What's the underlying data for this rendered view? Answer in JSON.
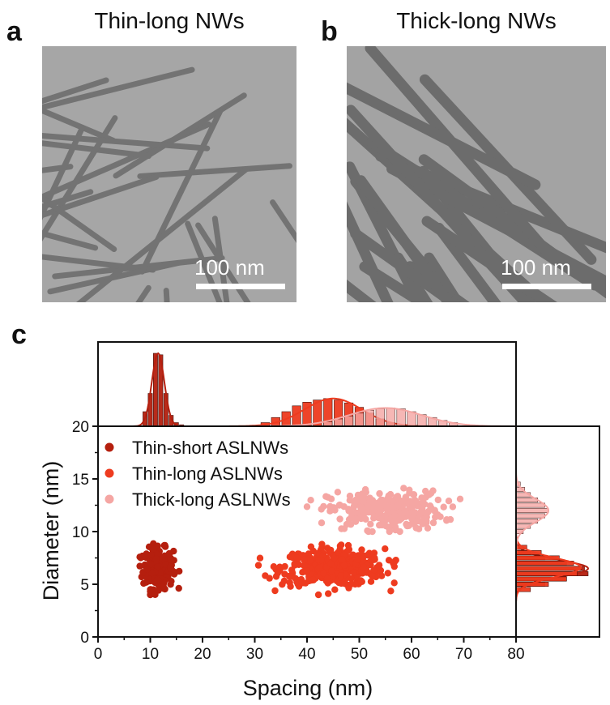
{
  "panels": {
    "a": {
      "letter": "a",
      "title": "Thin-long NWs",
      "scale_label": "100 nm"
    },
    "b": {
      "letter": "b",
      "title": "Thick-long NWs",
      "scale_label": "100 nm"
    },
    "c": {
      "letter": "c"
    }
  },
  "colors": {
    "thin_short": "#b51f0e",
    "thin_long": "#ee3b1f",
    "thick_long": "#f5a6a3"
  },
  "chart_data": {
    "type": "scatter",
    "xlabel": "Spacing (nm)",
    "ylabel": "Diameter (nm)",
    "xlim": [
      0,
      80
    ],
    "ylim": [
      0,
      20
    ],
    "x_ticks": [
      0,
      10,
      20,
      30,
      40,
      50,
      60,
      70,
      80
    ],
    "y_ticks": [
      0,
      5,
      10,
      15,
      20
    ],
    "legend_position": "top-left",
    "series": [
      {
        "name": "Thin-short ASLNWs",
        "color": "#b51f0e",
        "x_center": 11.5,
        "x_range": [
          8,
          16
        ],
        "y_center": 6.5,
        "y_range": [
          4,
          9.2
        ],
        "count": 250
      },
      {
        "name": "Thin-long ASLNWs",
        "color": "#ee3b1f",
        "x_center": 45,
        "x_range": [
          30,
          57
        ],
        "y_center": 6.6,
        "y_range": [
          4,
          8.8
        ],
        "count": 420
      },
      {
        "name": "Thick-long ASLNWs",
        "color": "#f5a6a3",
        "x_center": 55,
        "x_range": [
          40,
          70
        ],
        "y_center": 12,
        "y_range": [
          10,
          15
        ],
        "count": 280
      }
    ],
    "top_histograms": [
      {
        "series": "Thin-short ASLNWs",
        "bin_centers": [
          9,
          10,
          11,
          12,
          13,
          14,
          15,
          16
        ],
        "heights": [
          0.2,
          0.45,
          1.0,
          0.98,
          0.45,
          0.15,
          0.05,
          0.02
        ],
        "fit_mean": 11.5,
        "fit_sd": 1.2
      },
      {
        "series": "Thin-long ASLNWs",
        "bin_centers": [
          32,
          34,
          36,
          38,
          40,
          42,
          44,
          46,
          48,
          50,
          52,
          54,
          56
        ],
        "heights": [
          0.05,
          0.12,
          0.2,
          0.28,
          0.33,
          0.36,
          0.38,
          0.36,
          0.32,
          0.26,
          0.18,
          0.1,
          0.05
        ],
        "fit_mean": 45,
        "fit_sd": 5.5
      },
      {
        "series": "Thick-long ASLNWs",
        "bin_centers": [
          44,
          46,
          48,
          50,
          52,
          54,
          56,
          58,
          60,
          62,
          64,
          66,
          68
        ],
        "heights": [
          0.06,
          0.1,
          0.14,
          0.18,
          0.22,
          0.24,
          0.25,
          0.24,
          0.2,
          0.16,
          0.12,
          0.08,
          0.05
        ],
        "fit_mean": 55,
        "fit_sd": 7
      }
    ],
    "right_histograms": [
      {
        "series": "Thin-short ASLNWs",
        "bin_centers": [
          5,
          5.5,
          6,
          6.5,
          7,
          7.5,
          8
        ],
        "widths": [
          0.4,
          0.7,
          1.0,
          0.95,
          0.7,
          0.4,
          0.2
        ],
        "fit_mean": 6.5,
        "fit_sd": 0.8
      },
      {
        "series": "Thin-long ASLNWs",
        "bin_centers": [
          4.5,
          5,
          5.5,
          6,
          6.5,
          7,
          7.5,
          8,
          8.5
        ],
        "widths": [
          0.2,
          0.45,
          0.7,
          0.85,
          0.9,
          0.8,
          0.6,
          0.35,
          0.15
        ],
        "fit_mean": 6.6,
        "fit_sd": 0.9
      },
      {
        "series": "Thick-long ASLNWs",
        "bin_centers": [
          10,
          10.5,
          11,
          11.5,
          12,
          12.5,
          13,
          13.5,
          14,
          14.5
        ],
        "widths": [
          0.1,
          0.2,
          0.3,
          0.4,
          0.45,
          0.4,
          0.3,
          0.2,
          0.12,
          0.06
        ],
        "fit_mean": 12,
        "fit_sd": 1.1
      }
    ]
  }
}
